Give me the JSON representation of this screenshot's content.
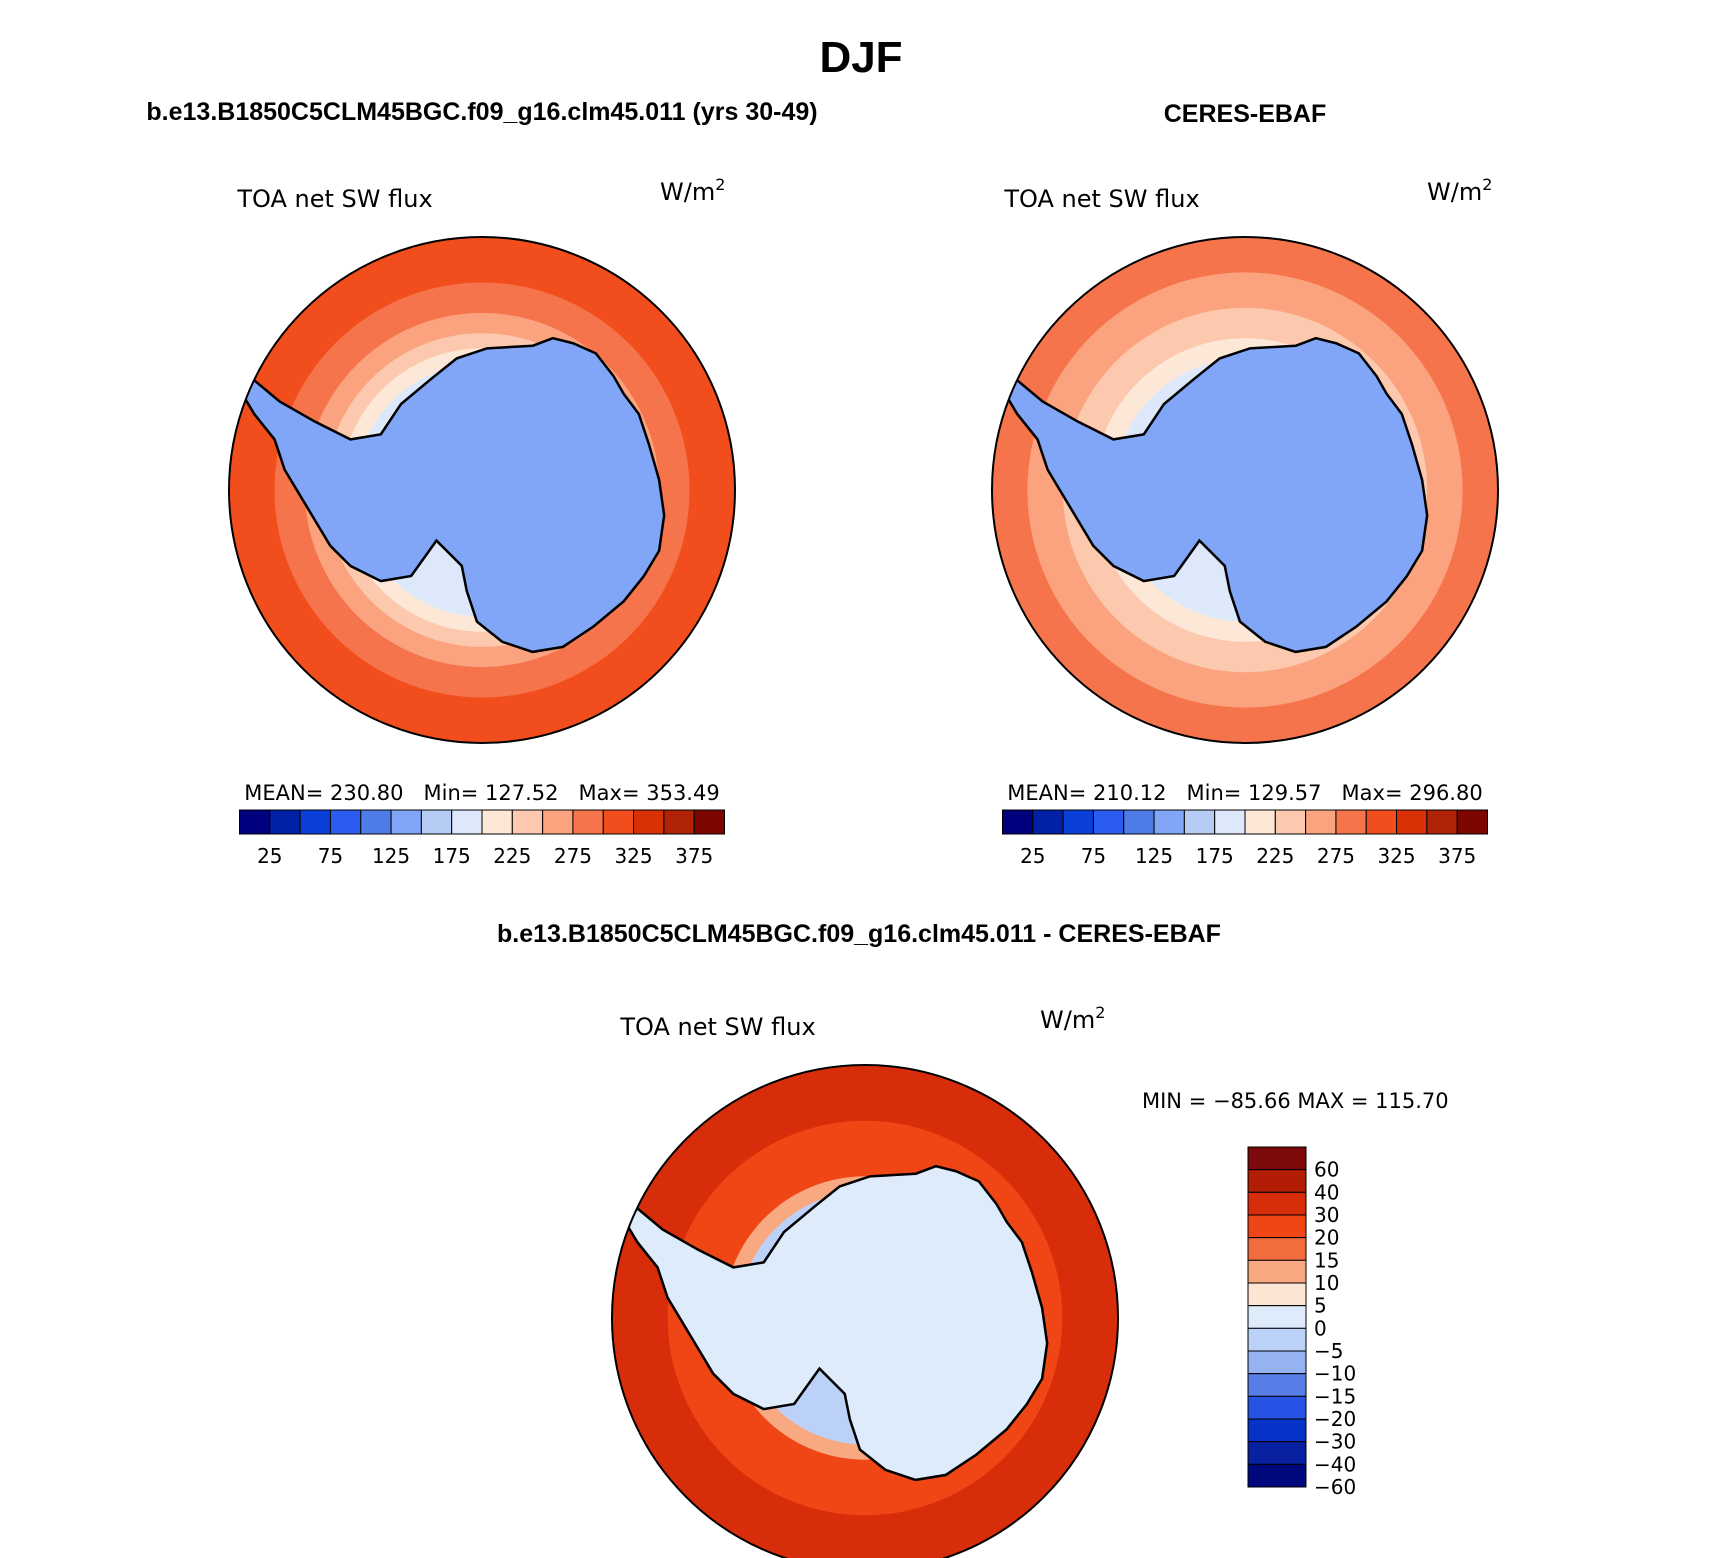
{
  "figure": {
    "title": "DJF",
    "top_left_heading": "b.e13.B1850C5CLM45BGC.f09_g16.clm45.011 (yrs 30-49)",
    "top_right_heading": "CERES-EBAF",
    "bottom_heading": "b.e13.B1850C5CLM45BGC.f09_g16.clm45.011 - CERES-EBAF"
  },
  "chart_data": [
    {
      "type": "heatmap",
      "projection": "south-polar-stereographic",
      "title": "TOA net SW flux",
      "units": "W/m",
      "units_superscript": "2",
      "stats_text": "MEAN= 230.80   Min= 127.52   Max= 353.49",
      "stats": {
        "mean": 230.8,
        "min": 127.52,
        "max": 353.49
      },
      "colorbar_ticks": [
        "25",
        "75",
        "125",
        "175",
        "225",
        "275",
        "325",
        "375"
      ],
      "levels": [
        0,
        25,
        50,
        75,
        100,
        125,
        150,
        175,
        200,
        225,
        250,
        275,
        300,
        325,
        350,
        375,
        400
      ],
      "field_rings": [
        {
          "r_frac": 1.0,
          "value": 312
        },
        {
          "r_frac": 0.82,
          "value": 298
        },
        {
          "r_frac": 0.7,
          "value": 268
        },
        {
          "r_frac": 0.62,
          "value": 240
        },
        {
          "r_frac": 0.56,
          "value": 205
        },
        {
          "r_frac": 0.5,
          "value": 180
        }
      ],
      "interior_value": 140
    },
    {
      "type": "heatmap",
      "projection": "south-polar-stereographic",
      "title": "TOA net SW flux",
      "units": "W/m",
      "units_superscript": "2",
      "stats_text": "MEAN= 210.12   Min= 129.57   Max= 296.80",
      "stats": {
        "mean": 210.12,
        "min": 129.57,
        "max": 296.8
      },
      "colorbar_ticks": [
        "25",
        "75",
        "125",
        "175",
        "225",
        "275",
        "325",
        "375"
      ],
      "levels": [
        0,
        25,
        50,
        75,
        100,
        125,
        150,
        175,
        200,
        225,
        250,
        275,
        300,
        325,
        350,
        375,
        400
      ],
      "field_rings": [
        {
          "r_frac": 1.0,
          "value": 285
        },
        {
          "r_frac": 0.86,
          "value": 260
        },
        {
          "r_frac": 0.72,
          "value": 232
        },
        {
          "r_frac": 0.6,
          "value": 210
        },
        {
          "r_frac": 0.52,
          "value": 185
        }
      ],
      "interior_value": 140
    },
    {
      "type": "heatmap",
      "projection": "south-polar-stereographic",
      "title": "TOA net SW flux",
      "units": "W/m",
      "units_superscript": "2",
      "minmax_text": "MIN = −85.66 MAX = 115.70",
      "stats": {
        "min": -85.66,
        "max": 115.7
      },
      "colorbar_orientation": "vertical",
      "colorbar_ticks": [
        "60",
        "40",
        "30",
        "20",
        "15",
        "10",
        "5",
        "0",
        "−5",
        "−10",
        "−15",
        "−20",
        "−30",
        "−40",
        "−60"
      ],
      "field_rings": [
        {
          "r_frac": 1.0,
          "value": 35
        },
        {
          "r_frac": 0.78,
          "value": 28
        },
        {
          "r_frac": 0.62,
          "value": 22
        },
        {
          "r_frac": 0.56,
          "value": 12
        },
        {
          "r_frac": 0.5,
          "value": -3
        }
      ],
      "interior_value": 2
    }
  ],
  "colors": {
    "abs_palette": [
      "#00007f",
      "#0021a6",
      "#0a3fd8",
      "#2a5cf0",
      "#4f7de8",
      "#82a6f7",
      "#b7ccf5",
      "#dde9fb",
      "#fde7d7",
      "#fcc9ae",
      "#fba27e",
      "#f6744c",
      "#f24d1d",
      "#da3005",
      "#b02307",
      "#7d0700"
    ],
    "diff_palette": [
      "#7d0a0a",
      "#b21d05",
      "#d82d0a",
      "#f04515",
      "#f26c3d",
      "#f8a982",
      "#fde5d3",
      "#deebfb",
      "#bcd1f7",
      "#95b3f3",
      "#587ee8",
      "#2752e4",
      "#0533c8",
      "#0821a2",
      "#00087e"
    ],
    "land": "#89aaf7",
    "coast": "#000000"
  }
}
